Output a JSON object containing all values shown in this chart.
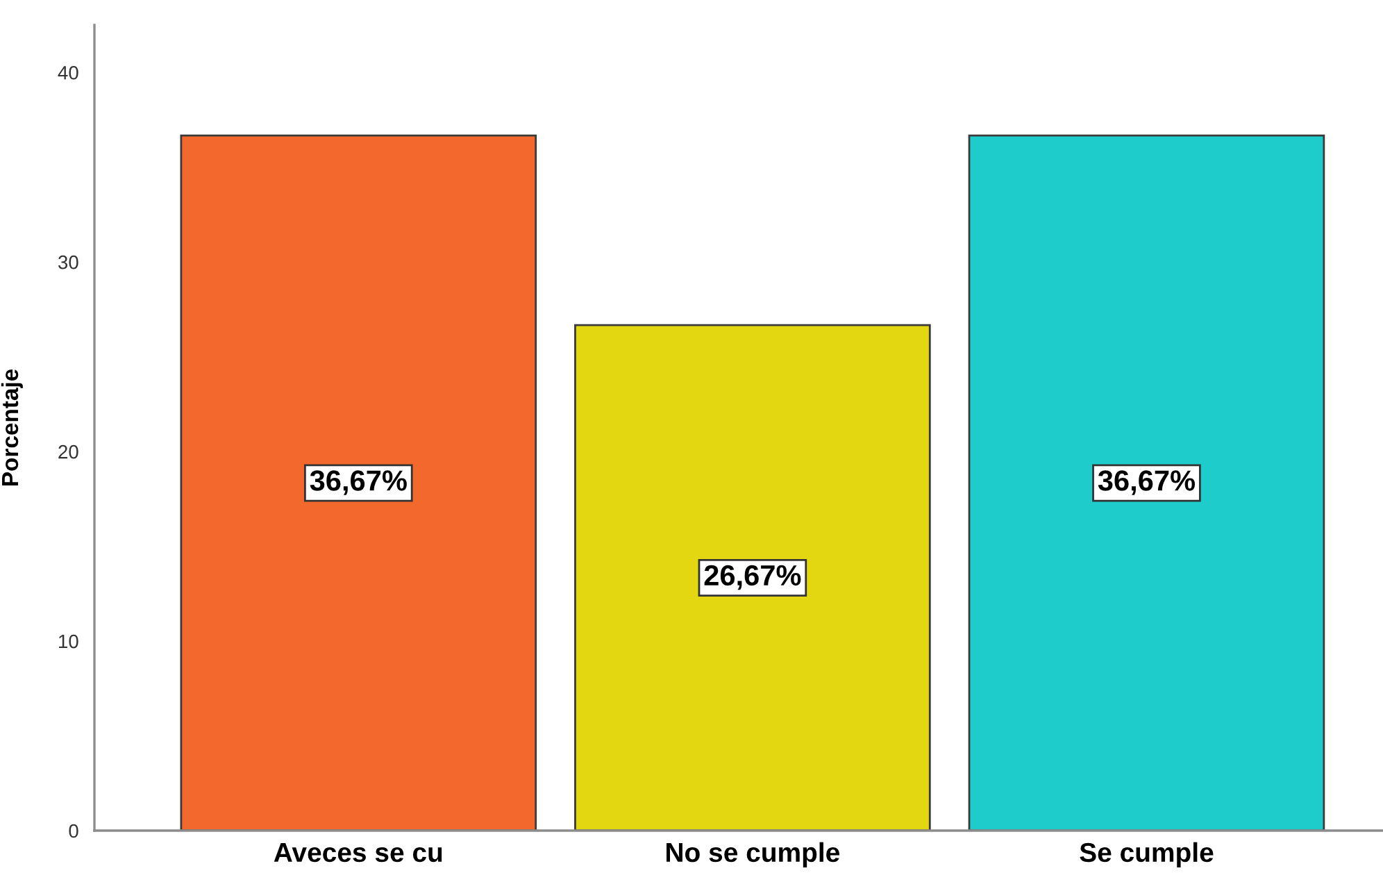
{
  "chart_data": {
    "type": "bar",
    "ylabel": "Porcentaje",
    "categories": [
      "Aveces se cu",
      "No se cumple",
      "Se cumple"
    ],
    "values": [
      36.67,
      26.67,
      36.67
    ],
    "colors": [
      "#f3682c",
      "#e3d712",
      "#1fcccc"
    ],
    "value_labels": [
      "36,67%",
      "26,67%",
      "36,67%"
    ],
    "ylim": [
      0,
      42.5
    ],
    "yticks": [
      0,
      10,
      20,
      30,
      40
    ]
  }
}
